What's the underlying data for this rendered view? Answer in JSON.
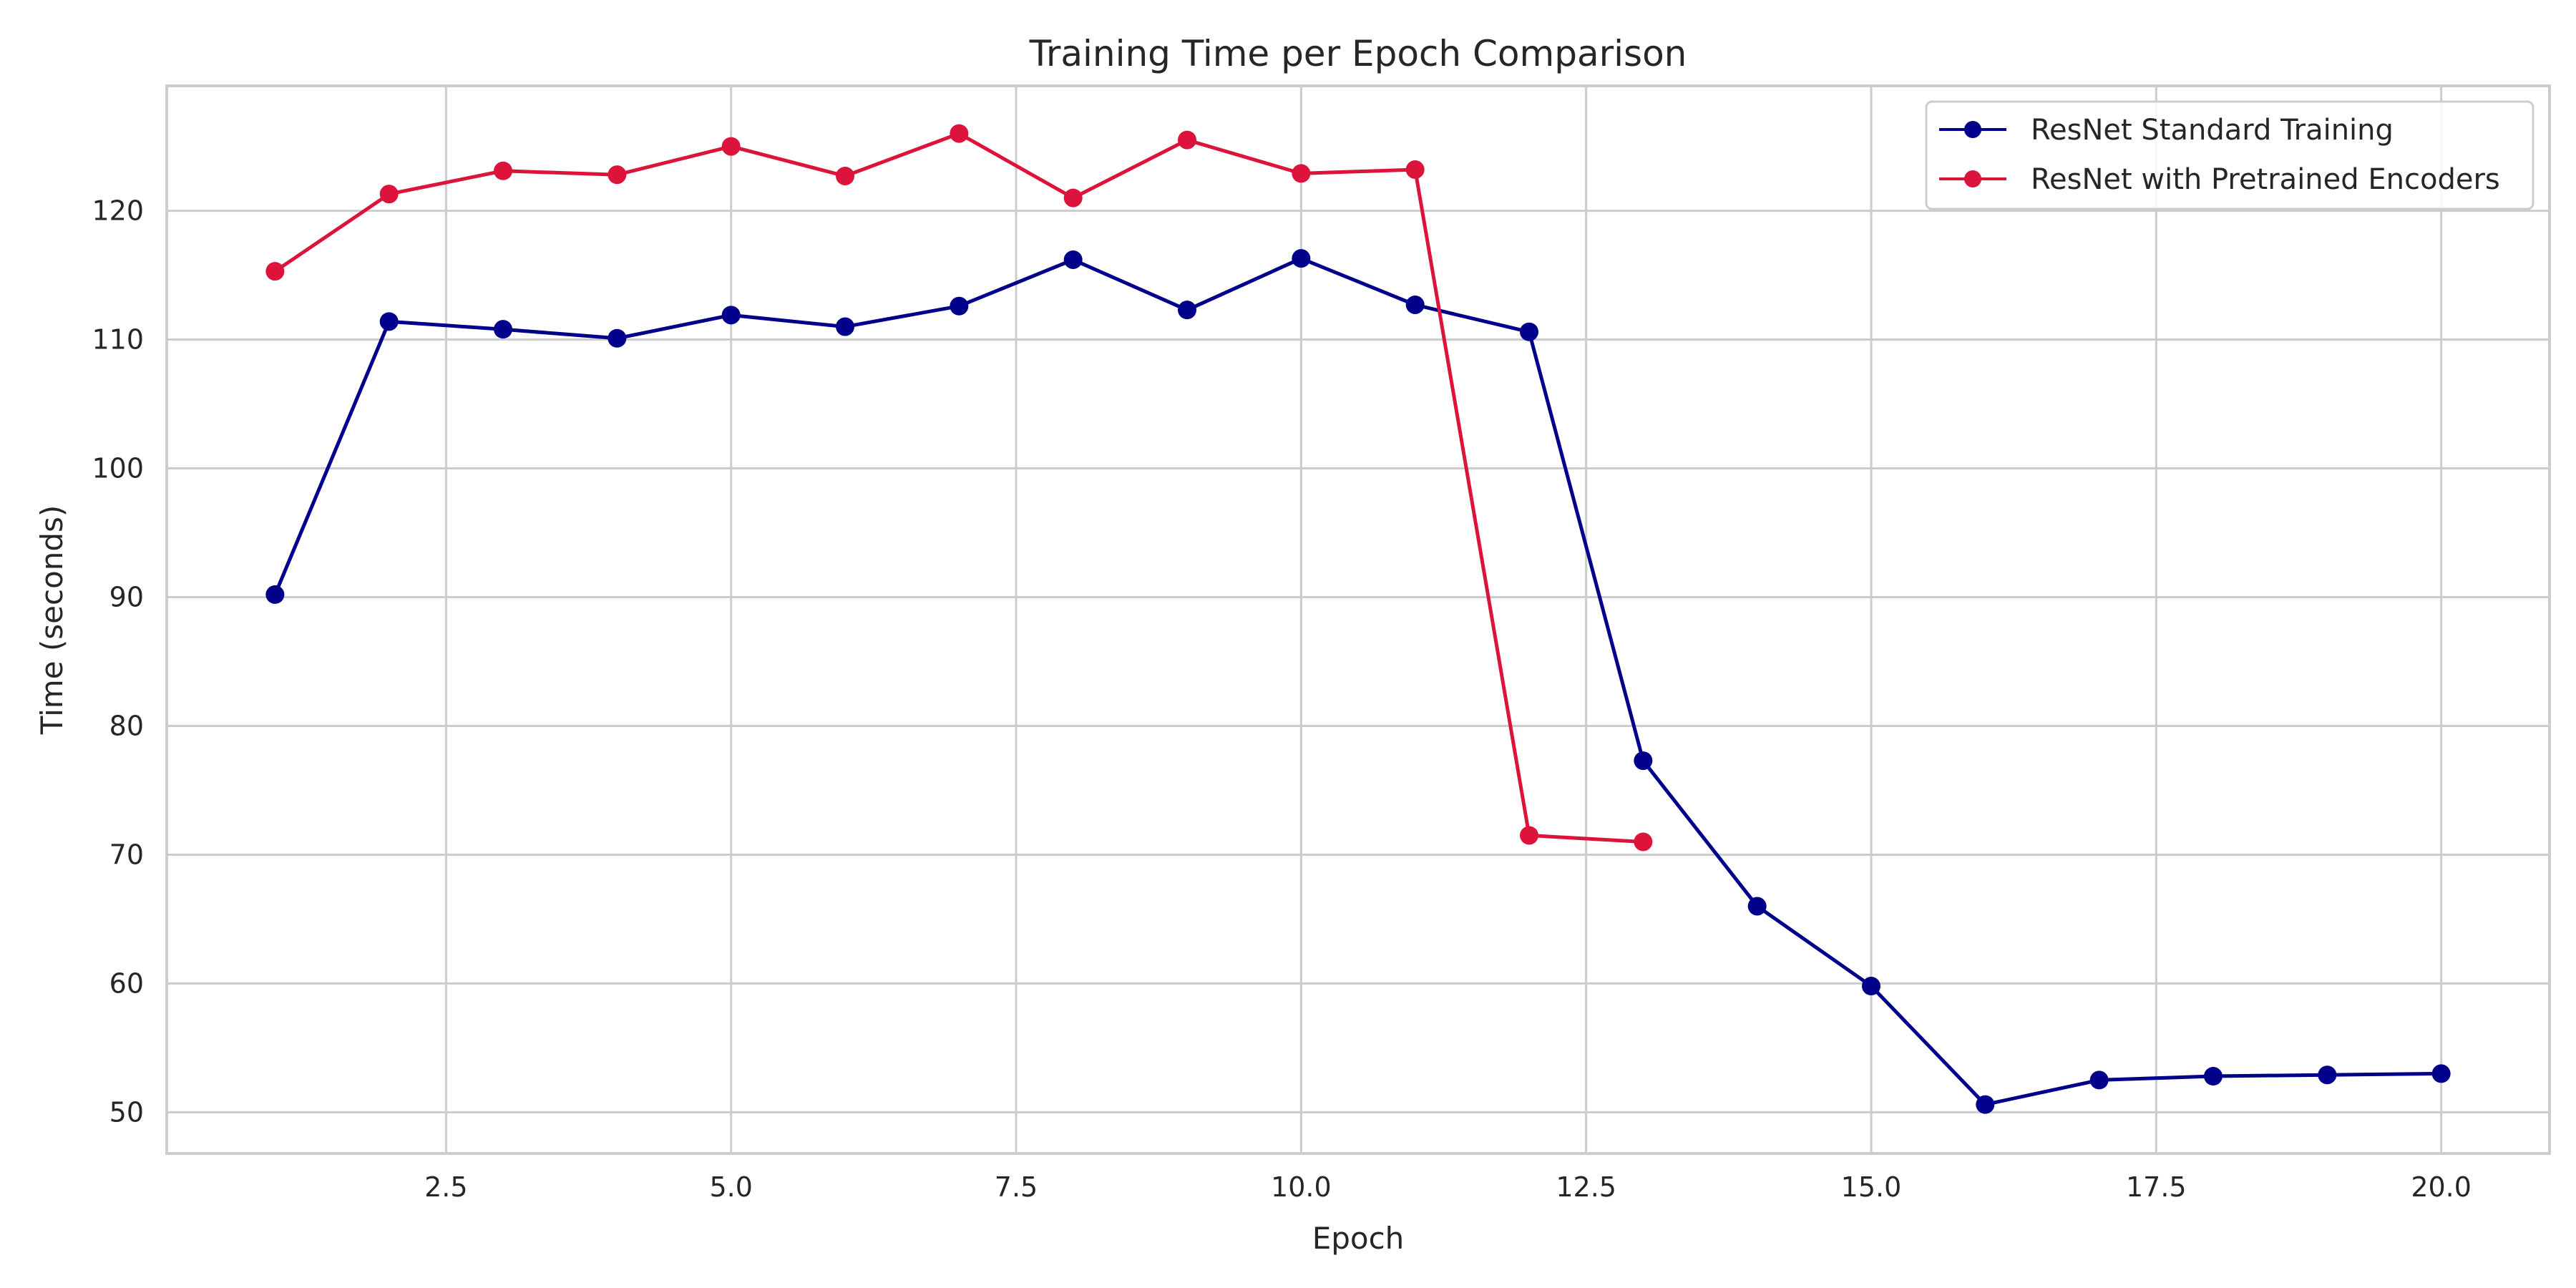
{
  "chart_data": {
    "type": "line",
    "title": "Training Time per Epoch Comparison",
    "xlabel": "Epoch",
    "ylabel": "Time (seconds)",
    "xlim": [
      0.05,
      20.95
    ],
    "ylim": [
      46.8,
      129.7
    ],
    "xticks": [
      2.5,
      5.0,
      7.5,
      10.0,
      12.5,
      15.0,
      17.5,
      20.0
    ],
    "xtick_labels": [
      "2.5",
      "5.0",
      "7.5",
      "10.0",
      "12.5",
      "15.0",
      "17.5",
      "20.0"
    ],
    "yticks": [
      50,
      60,
      70,
      80,
      90,
      100,
      110,
      120
    ],
    "ytick_labels": [
      "50",
      "60",
      "70",
      "80",
      "90",
      "100",
      "110",
      "120"
    ],
    "grid": true,
    "legend_position": "top-right",
    "series": [
      {
        "name": "ResNet Standard Training",
        "color": "#00008b",
        "marker": "circle",
        "x": [
          1,
          2,
          3,
          4,
          5,
          6,
          7,
          8,
          9,
          10,
          11,
          12,
          13,
          14,
          15,
          16,
          17,
          18,
          19,
          20
        ],
        "y": [
          90.2,
          111.4,
          110.8,
          110.1,
          111.9,
          111.0,
          112.6,
          116.2,
          112.3,
          116.3,
          112.7,
          110.6,
          77.3,
          66.0,
          59.8,
          50.6,
          52.5,
          52.8,
          52.9,
          53.0
        ]
      },
      {
        "name": "ResNet with Pretrained Encoders",
        "color": "#dc143c",
        "marker": "circle",
        "x": [
          1,
          2,
          3,
          4,
          5,
          6,
          7,
          8,
          9,
          10,
          11,
          12,
          13
        ],
        "y": [
          115.3,
          121.3,
          123.1,
          122.8,
          125.0,
          122.7,
          126.0,
          121.0,
          125.5,
          122.9,
          123.2,
          71.5,
          71.0
        ]
      }
    ]
  }
}
